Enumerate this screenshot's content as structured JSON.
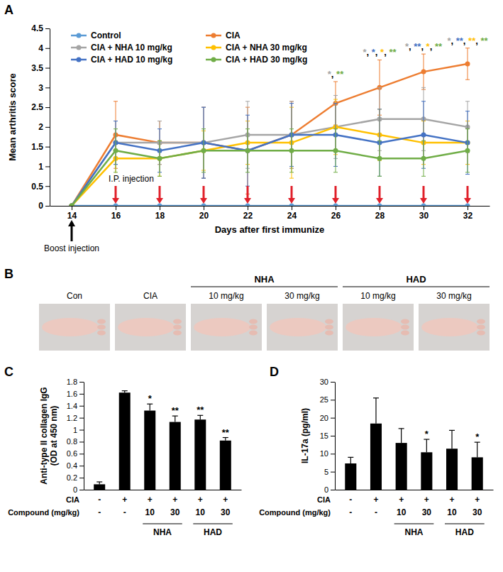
{
  "chart_data": [
    {
      "type": "line",
      "panel": "A",
      "x_label": "Days after first immunize",
      "y_label": "Mean arthritis score",
      "x": [
        14,
        16,
        18,
        20,
        22,
        24,
        26,
        28,
        30,
        32
      ],
      "xlim": [
        13,
        33
      ],
      "xticks": [
        14,
        16,
        18,
        20,
        22,
        24,
        26,
        28,
        30,
        32
      ],
      "ylim": [
        0,
        4.5
      ],
      "yticks": [
        0,
        0.5,
        1,
        1.5,
        2,
        2.5,
        3,
        3.5,
        4,
        4.5
      ],
      "legend": "upper left",
      "marker": "circle",
      "line_style": "solid",
      "series": [
        {
          "name": "Control",
          "color": "#5B9BD5",
          "values": [
            0,
            0,
            0,
            0,
            0,
            0,
            0,
            0,
            0,
            0
          ],
          "errors": [
            0,
            0,
            0,
            0,
            0,
            0,
            0,
            0,
            0,
            0
          ]
        },
        {
          "name": "CIA",
          "color": "#ED7D31",
          "values": [
            0,
            1.8,
            1.6,
            1.6,
            1.4,
            1.8,
            2.6,
            3.0,
            3.4,
            3.6
          ],
          "errors": [
            0,
            0.85,
            0.55,
            0.9,
            1.1,
            0.85,
            0.55,
            0.7,
            0.45,
            0.4
          ]
        },
        {
          "name": "CIA + NHA 10 mg/kg",
          "color": "#A5A5A5",
          "values": [
            0,
            1.6,
            1.6,
            1.6,
            1.8,
            1.8,
            2.0,
            2.2,
            2.2,
            2.0
          ],
          "errors": [
            0,
            0.55,
            0.55,
            0.9,
            0.85,
            0.85,
            0.8,
            0.8,
            0.8,
            0.65
          ]
        },
        {
          "name": "CIA + NHA 30 mg/kg",
          "color": "#FFC000",
          "values": [
            0,
            1.2,
            1.2,
            1.4,
            1.6,
            1.6,
            2.0,
            1.8,
            1.6,
            1.6
          ],
          "errors": [
            0,
            0.45,
            0.45,
            0.5,
            0.55,
            0.9,
            0.7,
            0.65,
            0.55,
            0.55
          ]
        },
        {
          "name": "CIA + HAD 10 mg/kg",
          "color": "#4472C4",
          "values": [
            0,
            1.6,
            1.4,
            1.6,
            1.4,
            1.8,
            1.8,
            1.6,
            1.8,
            1.6
          ],
          "errors": [
            0,
            0.55,
            0.55,
            0.9,
            0.9,
            0.8,
            0.8,
            0.85,
            0.85,
            0.8
          ]
        },
        {
          "name": "CIA + HAD 30 mg/kg",
          "color": "#70AD47",
          "values": [
            0,
            1.4,
            1.2,
            1.4,
            1.4,
            1.4,
            1.4,
            1.2,
            1.2,
            1.4
          ],
          "errors": [
            0,
            0.55,
            0.45,
            0.55,
            0.55,
            0.55,
            0.55,
            0.45,
            0.45,
            0.55
          ]
        }
      ],
      "annotations": [
        {
          "x": 26,
          "separator": ",",
          "marks": [
            {
              "text": "*",
              "color": "#A5A5A5"
            },
            {
              "text": "**",
              "color": "#70AD47"
            }
          ]
        },
        {
          "x": 28,
          "separator": ",",
          "marks": [
            {
              "text": "*",
              "color": "#A5A5A5"
            },
            {
              "text": "*",
              "color": "#4472C4"
            },
            {
              "text": "*",
              "color": "#FFC000"
            },
            {
              "text": "**",
              "color": "#70AD47"
            }
          ]
        },
        {
          "x": 30,
          "separator": ",",
          "marks": [
            {
              "text": "*",
              "color": "#A5A5A5"
            },
            {
              "text": "**",
              "color": "#4472C4"
            },
            {
              "text": "*",
              "color": "#FFC000"
            },
            {
              "text": "**",
              "color": "#70AD47"
            }
          ]
        },
        {
          "x": 32,
          "separator": ",",
          "marks": [
            {
              "text": "*",
              "color": "#A5A5A5"
            },
            {
              "text": "**",
              "color": "#4472C4"
            },
            {
              "text": "**",
              "color": "#FFC000"
            },
            {
              "text": "**",
              "color": "#70AD47"
            }
          ]
        }
      ],
      "boost": {
        "x": 14,
        "text": "Boost injection"
      },
      "injections": {
        "x": [
          16,
          18,
          20,
          22,
          24,
          26,
          28,
          30,
          32
        ],
        "text": "I.P. injection"
      }
    },
    {
      "type": "bar",
      "panel": "C",
      "y_label": [
        "Anti-type II collagen IgG",
        "(OD at 450 nm)"
      ],
      "categories": [
        null,
        null,
        null,
        null,
        null,
        null
      ],
      "values": [
        0.09,
        1.62,
        1.32,
        1.13,
        1.17,
        0.82
      ],
      "errors": [
        0.04,
        0.03,
        0.11,
        0.1,
        0.07,
        0.05
      ],
      "stars": [
        null,
        null,
        "*",
        "**",
        "**",
        "**"
      ],
      "color": "#000000",
      "ylim": [
        0,
        1.8
      ],
      "yticks": [
        0,
        0.2,
        0.4,
        0.6,
        0.8,
        1,
        1.2,
        1.4,
        1.6,
        1.8
      ],
      "x_table": {
        "rows": [
          {
            "label": "CIA",
            "cells": [
              "-",
              "+",
              "+",
              "+",
              "+",
              "+"
            ]
          },
          {
            "label": "Compound (mg/kg)",
            "cells": [
              "-",
              "-",
              "10",
              "30",
              "10",
              "30"
            ]
          }
        ],
        "groups": [
          {
            "label": "NHA",
            "from": 2,
            "to": 3
          },
          {
            "label": "HAD",
            "from": 4,
            "to": 5
          }
        ]
      }
    },
    {
      "type": "bar",
      "panel": "D",
      "y_label": [
        "IL-17a (pg/ml)"
      ],
      "categories": [
        null,
        null,
        null,
        null,
        null,
        null
      ],
      "values": [
        7.3,
        18.4,
        13.0,
        10.4,
        11.4,
        9.0
      ],
      "errors": [
        1.7,
        7.1,
        4.0,
        3.6,
        5.1,
        4.2
      ],
      "stars": [
        null,
        null,
        null,
        "*",
        null,
        "*"
      ],
      "color": "#000000",
      "ylim": [
        0,
        30
      ],
      "yticks": [
        0,
        5,
        10,
        15,
        20,
        25,
        30
      ],
      "x_table": {
        "rows": [
          {
            "label": "CIA",
            "cells": [
              "-",
              "+",
              "+",
              "+",
              "+",
              "+"
            ]
          },
          {
            "label": "Compound (mg/kg)",
            "cells": [
              "-",
              "-",
              "10",
              "30",
              "10",
              "30"
            ]
          }
        ],
        "groups": [
          {
            "label": "NHA",
            "from": 2,
            "to": 3
          },
          {
            "label": "HAD",
            "from": 4,
            "to": 5
          }
        ]
      }
    }
  ],
  "photos": {
    "panel": "B",
    "captions": [
      "Con",
      "CIA",
      "10 mg/kg",
      "30 mg/kg",
      "10 mg/kg",
      "30 mg/kg"
    ],
    "groups": [
      {
        "label": "NHA",
        "from": 2,
        "to": 3
      },
      {
        "label": "HAD",
        "from": 4,
        "to": 5
      }
    ]
  }
}
